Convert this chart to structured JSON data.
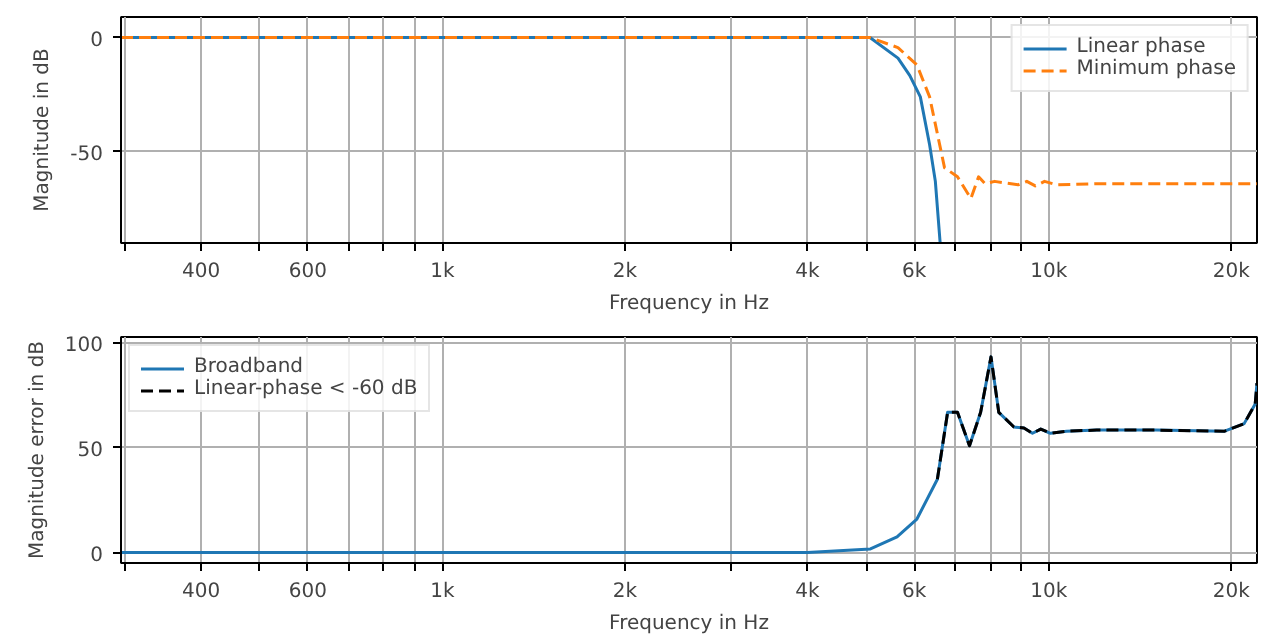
{
  "chart_data": [
    {
      "type": "line",
      "xlabel": "Frequency in Hz",
      "ylabel": "Magnitude in dB",
      "log": "x",
      "grid": true,
      "legend": "top right",
      "xlim": [
        295,
        22050
      ],
      "ylim": [
        -90,
        9
      ],
      "yticks": [
        0,
        -50
      ],
      "xticks": [
        {
          "value": 300,
          "label": null
        },
        400,
        {
          "value": 500,
          "label": null
        },
        600,
        {
          "value": 700,
          "label": null
        },
        {
          "value": 800,
          "label": null
        },
        {
          "value": 900,
          "label": null
        },
        {
          "value": 1000,
          "label": "1k"
        },
        {
          "value": 2000,
          "label": "2k"
        },
        {
          "value": 3000,
          "label": null
        },
        {
          "value": 4000,
          "label": "4k"
        },
        {
          "value": 5000,
          "label": null
        },
        {
          "value": 6000,
          "label": "6k"
        },
        {
          "value": 7000,
          "label": null
        },
        {
          "value": 8000,
          "label": null
        },
        {
          "value": 9000,
          "label": null
        },
        {
          "value": 10000,
          "label": "10k"
        },
        {
          "value": 20000,
          "label": "20k"
        }
      ],
      "series": [
        {
          "name": "Linear phase",
          "color": "#1f77b4",
          "line_style": "solid",
          "x": [
            295,
            1000,
            4000,
            5070,
            5640,
            5900,
            6140,
            6360,
            6500,
            6620
          ],
          "values": [
            0,
            0,
            0,
            0,
            -9,
            -16.7,
            -26,
            -47,
            -63,
            -90
          ]
        },
        {
          "name": "Minimum phase",
          "color": "#ff7f0e",
          "line_style": "dashed",
          "x": [
            295,
            1000,
            4000,
            5070,
            5640,
            6060,
            6360,
            6730,
            7070,
            7440,
            7660,
            7850,
            8140,
            8900,
            9200,
            9500,
            9840,
            10300,
            12000,
            16000,
            22050
          ],
          "values": [
            0,
            0,
            0,
            0,
            -4.4,
            -12,
            -26,
            -57,
            -61,
            -70.5,
            -61,
            -64,
            -63,
            -64.5,
            -63,
            -65,
            -63,
            -64.5,
            -64,
            -64,
            -64
          ]
        }
      ]
    },
    {
      "type": "line",
      "xlabel": "Frequency in Hz",
      "ylabel": "Magnitude error in dB",
      "log": "x",
      "grid": true,
      "legend": "top left",
      "xlim": [
        295,
        22050
      ],
      "ylim": [
        -5,
        103
      ],
      "yticks": [
        0,
        50,
        100
      ],
      "xticks": [
        {
          "value": 300,
          "label": null
        },
        400,
        {
          "value": 500,
          "label": null
        },
        600,
        {
          "value": 700,
          "label": null
        },
        {
          "value": 800,
          "label": null
        },
        {
          "value": 900,
          "label": null
        },
        {
          "value": 1000,
          "label": "1k"
        },
        {
          "value": 2000,
          "label": "2k"
        },
        {
          "value": 3000,
          "label": null
        },
        {
          "value": 4000,
          "label": "4k"
        },
        {
          "value": 5000,
          "label": null
        },
        {
          "value": 6000,
          "label": "6k"
        },
        {
          "value": 7000,
          "label": null
        },
        {
          "value": 8000,
          "label": null
        },
        {
          "value": 9000,
          "label": null
        },
        {
          "value": 10000,
          "label": "10k"
        },
        {
          "value": 20000,
          "label": "20k"
        }
      ],
      "series": [
        {
          "name": "Broadband",
          "color": "#1f77b4",
          "line_style": "solid",
          "x": [
            295,
            1000,
            4000,
            5080,
            5620,
            6060,
            6550,
            6810,
            7070,
            7400,
            7720,
            8030,
            8270,
            8760,
            9100,
            9400,
            9700,
            10060,
            10700,
            12000,
            15000,
            19500,
            21000,
            21900,
            22050
          ],
          "values": [
            0,
            0,
            0,
            1.7,
            7.5,
            16,
            35,
            67,
            67,
            51,
            67,
            93.5,
            67,
            60,
            59.5,
            57,
            59,
            57,
            58,
            58.5,
            58.5,
            58,
            61.6,
            71,
            81
          ]
        },
        {
          "name": "Linear-phase < -60 dB",
          "color": "#000000",
          "line_style": "dashed",
          "x": [
            6550,
            6810,
            7070,
            7400,
            7720,
            8030,
            8270,
            8760,
            9100,
            9400,
            9700,
            10060,
            10700,
            12000,
            15000,
            19500,
            21000,
            21900,
            22050
          ],
          "values": [
            35,
            67,
            67,
            51,
            67,
            93.5,
            67,
            60,
            59.5,
            57,
            59,
            57,
            58,
            58.5,
            58.5,
            58,
            61.6,
            71,
            81
          ]
        }
      ]
    }
  ]
}
